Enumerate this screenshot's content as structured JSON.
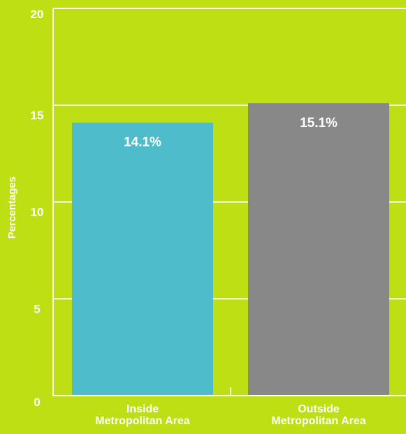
{
  "chart_data": {
    "type": "bar",
    "title": "",
    "xlabel": "",
    "ylabel": "Percentages",
    "ylim": [
      0,
      20
    ],
    "yticks": [
      0,
      5,
      10,
      15,
      20
    ],
    "grid": true,
    "categories": [
      [
        "Inside",
        "Metropolitan Area"
      ],
      [
        "Outside",
        "Metropolitan Area"
      ]
    ],
    "values": [
      14.1,
      15.1
    ],
    "data_labels": [
      "14.1%",
      "15.1%"
    ],
    "bar_colors": [
      "#4fbccb",
      "#888888"
    ],
    "background_color": "#bedf14",
    "axis_color": "#ffffff"
  }
}
